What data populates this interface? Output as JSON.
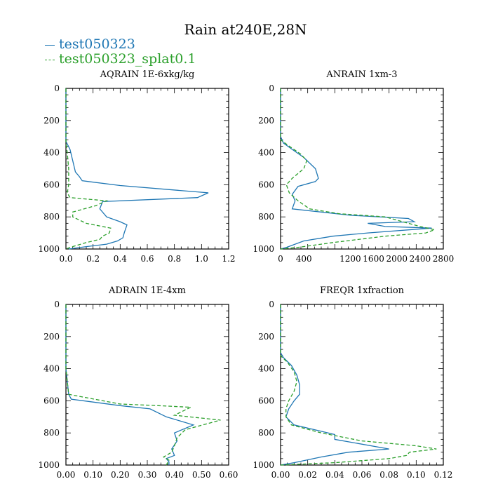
{
  "title": "Rain at240E,28N",
  "colors": {
    "series1": "#1f77b4",
    "series2": "#2ca02c",
    "axis": "#000000"
  },
  "chart_data": [
    {
      "type": "line",
      "title": "AQRAIN  1E-6xkg/kg",
      "xlim": [
        0,
        1.2
      ],
      "ylim": [
        1000,
        0
      ],
      "xticks": [
        0,
        0.2,
        0.4,
        0.6,
        0.8,
        1.0,
        1.2
      ],
      "xtick_labels": [
        "0.0",
        "0.2",
        "0.4",
        "0.6",
        "0.8",
        "1.0",
        "1.2"
      ],
      "yticks": [
        0,
        200,
        400,
        600,
        800,
        1000
      ],
      "ytick_labels": [
        "0",
        "200",
        "400",
        "600",
        "800",
        "1000"
      ],
      "series": [
        {
          "name": "test050323",
          "style": "solid",
          "points": [
            [
              0,
              0
            ],
            [
              0,
              330
            ],
            [
              0.03,
              380
            ],
            [
              0.05,
              450
            ],
            [
              0.07,
              520
            ],
            [
              0.1,
              550
            ],
            [
              0.12,
              575
            ],
            [
              0.4,
              605
            ],
            [
              1.05,
              650
            ],
            [
              0.97,
              680
            ],
            [
              0.27,
              705
            ],
            [
              0.25,
              750
            ],
            [
              0.3,
              800
            ],
            [
              0.4,
              830
            ],
            [
              0.45,
              850
            ],
            [
              0.43,
              900
            ],
            [
              0.42,
              930
            ],
            [
              0.38,
              950
            ],
            [
              0.3,
              970
            ],
            [
              0.15,
              985
            ],
            [
              0.02,
              1000
            ]
          ]
        },
        {
          "name": "test050323_splat0.1",
          "style": "dashed",
          "points": [
            [
              0,
              0
            ],
            [
              0,
              340
            ],
            [
              0.01,
              400
            ],
            [
              0.02,
              500
            ],
            [
              0.02,
              600
            ],
            [
              0.01,
              650
            ],
            [
              0.03,
              680
            ],
            [
              0.3,
              700
            ],
            [
              0.22,
              730
            ],
            [
              0.05,
              770
            ],
            [
              0.05,
              800
            ],
            [
              0.15,
              840
            ],
            [
              0.33,
              870
            ],
            [
              0.32,
              900
            ],
            [
              0.27,
              920
            ],
            [
              0.25,
              940
            ],
            [
              0.15,
              960
            ],
            [
              0.03,
              990
            ],
            [
              0,
              1000
            ]
          ]
        }
      ]
    },
    {
      "type": "line",
      "title": "ANRAIN  1xm-3",
      "xlim": [
        0,
        2800
      ],
      "ylim": [
        1000,
        0
      ],
      "xticks": [
        0,
        400,
        1200,
        1600,
        2000,
        2400,
        2800
      ],
      "xtick_labels": [
        "0",
        "400",
        "1200",
        "1600",
        "2000",
        "2400",
        "2800"
      ],
      "yticks": [
        0,
        200,
        400,
        600,
        800,
        1000
      ],
      "ytick_labels": [
        "0",
        "200",
        "400",
        "600",
        "800",
        "1000"
      ],
      "series": [
        {
          "name": "test050323",
          "style": "solid",
          "points": [
            [
              0,
              0
            ],
            [
              0,
              300
            ],
            [
              50,
              340
            ],
            [
              200,
              380
            ],
            [
              400,
              430
            ],
            [
              600,
              500
            ],
            [
              650,
              560
            ],
            [
              600,
              580
            ],
            [
              300,
              610
            ],
            [
              200,
              660
            ],
            [
              250,
              700
            ],
            [
              200,
              750
            ],
            [
              1200,
              790
            ],
            [
              2200,
              810
            ],
            [
              2300,
              830
            ],
            [
              1500,
              840
            ],
            [
              1800,
              860
            ],
            [
              2600,
              870
            ],
            [
              1500,
              900
            ],
            [
              900,
              920
            ],
            [
              400,
              950
            ],
            [
              100,
              990
            ],
            [
              0,
              1000
            ]
          ]
        },
        {
          "name": "test050323_splat0.1",
          "style": "dashed",
          "points": [
            [
              0,
              0
            ],
            [
              0,
              320
            ],
            [
              150,
              360
            ],
            [
              350,
              410
            ],
            [
              450,
              450
            ],
            [
              400,
              500
            ],
            [
              200,
              560
            ],
            [
              100,
              600
            ],
            [
              150,
              650
            ],
            [
              300,
              700
            ],
            [
              500,
              750
            ],
            [
              1000,
              780
            ],
            [
              1800,
              800
            ],
            [
              2400,
              860
            ],
            [
              2650,
              880
            ],
            [
              2500,
              900
            ],
            [
              1800,
              920
            ],
            [
              900,
              960
            ],
            [
              300,
              990
            ],
            [
              0,
              1000
            ]
          ]
        }
      ]
    },
    {
      "type": "line",
      "title": "ADRAIN  1E-4xm",
      "xlim": [
        0,
        0.6
      ],
      "ylim": [
        1000,
        0
      ],
      "xticks": [
        0,
        0.1,
        0.2,
        0.3,
        0.4,
        0.5,
        0.6
      ],
      "xtick_labels": [
        "0.00",
        "0.10",
        "0.20",
        "0.30",
        "0.40",
        "0.50",
        "0.60"
      ],
      "yticks": [
        0,
        200,
        400,
        600,
        800,
        1000
      ],
      "ytick_labels": [
        "0",
        "200",
        "400",
        "600",
        "800",
        "1000"
      ],
      "series": [
        {
          "name": "test050323",
          "style": "solid",
          "points": [
            [
              0,
              0
            ],
            [
              0,
              400
            ],
            [
              0.01,
              560
            ],
            [
              0.02,
              590
            ],
            [
              0.2,
              630
            ],
            [
              0.31,
              650
            ],
            [
              0.37,
              700
            ],
            [
              0.47,
              750
            ],
            [
              0.4,
              800
            ],
            [
              0.41,
              850
            ],
            [
              0.39,
              900
            ],
            [
              0.4,
              940
            ],
            [
              0.37,
              960
            ],
            [
              0.38,
              980
            ],
            [
              0.38,
              1000
            ]
          ]
        },
        {
          "name": "test050323_splat0.1",
          "style": "dashed",
          "points": [
            [
              0,
              0
            ],
            [
              0,
              400
            ],
            [
              0.01,
              560
            ],
            [
              0.2,
              620
            ],
            [
              0.34,
              630
            ],
            [
              0.46,
              640
            ],
            [
              0.4,
              690
            ],
            [
              0.57,
              720
            ],
            [
              0.44,
              780
            ],
            [
              0.41,
              830
            ],
            [
              0.4,
              880
            ],
            [
              0.39,
              920
            ],
            [
              0.36,
              950
            ],
            [
              0.38,
              970
            ],
            [
              0.37,
              1000
            ]
          ]
        }
      ]
    },
    {
      "type": "line",
      "title": "FREQR  1xfraction",
      "xlim": [
        0,
        0.12
      ],
      "ylim": [
        1000,
        0
      ],
      "xticks": [
        0,
        0.02,
        0.04,
        0.06,
        0.08,
        0.1,
        0.12
      ],
      "xtick_labels": [
        "0.00",
        "0.02",
        "0.04",
        "0.06",
        "0.08",
        "0.10",
        "0.12"
      ],
      "yticks": [
        0,
        200,
        400,
        600,
        800,
        1000
      ],
      "ytick_labels": [
        "0",
        "200",
        "400",
        "600",
        "800",
        "1000"
      ],
      "series": [
        {
          "name": "test050323",
          "style": "solid",
          "points": [
            [
              0,
              0
            ],
            [
              0,
              300
            ],
            [
              0.002,
              330
            ],
            [
              0.008,
              380
            ],
            [
              0.012,
              440
            ],
            [
              0.014,
              500
            ],
            [
              0.014,
              560
            ],
            [
              0.01,
              600
            ],
            [
              0.006,
              650
            ],
            [
              0.004,
              700
            ],
            [
              0.01,
              750
            ],
            [
              0.03,
              790
            ],
            [
              0.04,
              810
            ],
            [
              0.04,
              840
            ],
            [
              0.08,
              900
            ],
            [
              0.05,
              920
            ],
            [
              0.03,
              950
            ],
            [
              0.01,
              985
            ],
            [
              0,
              1000
            ]
          ]
        },
        {
          "name": "test050323_splat0.1",
          "style": "dashed",
          "points": [
            [
              0,
              0
            ],
            [
              0,
              320
            ],
            [
              0.005,
              360
            ],
            [
              0.01,
              420
            ],
            [
              0.012,
              480
            ],
            [
              0.01,
              540
            ],
            [
              0.006,
              600
            ],
            [
              0.004,
              650
            ],
            [
              0.004,
              700
            ],
            [
              0.008,
              750
            ],
            [
              0.03,
              800
            ],
            [
              0.06,
              850
            ],
            [
              0.1,
              880
            ],
            [
              0.115,
              900
            ],
            [
              0.095,
              920
            ],
            [
              0.093,
              940
            ],
            [
              0.08,
              960
            ],
            [
              0.04,
              985
            ],
            [
              0,
              1000
            ]
          ]
        }
      ]
    }
  ]
}
